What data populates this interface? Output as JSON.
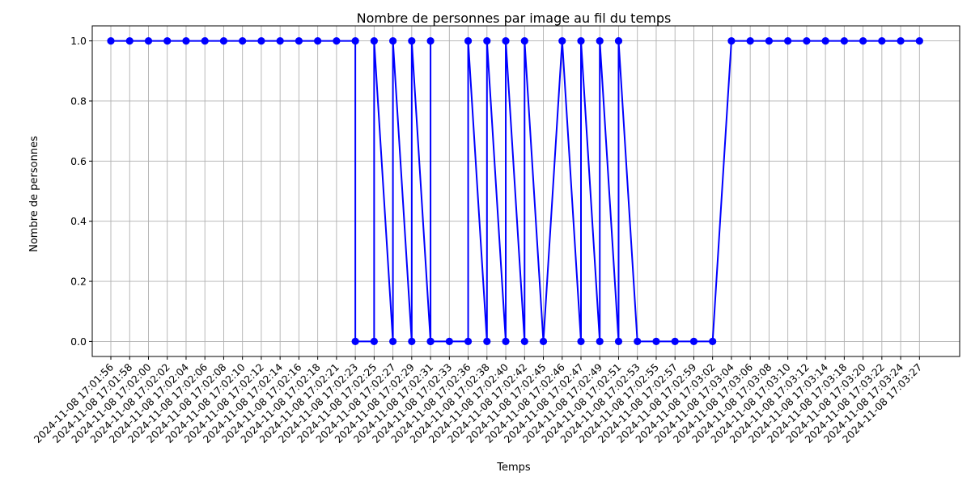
{
  "chart_data": {
    "type": "line",
    "title": "Nombre de personnes par image au fil du temps",
    "xlabel": "Temps",
    "ylabel": "Nombre de personnes",
    "ylim": [
      -0.05,
      1.05
    ],
    "yticks": [
      0.0,
      0.2,
      0.4,
      0.6,
      0.8,
      1.0
    ],
    "ytick_labels": [
      "0.0",
      "0.2",
      "0.4",
      "0.6",
      "0.8",
      "1.0"
    ],
    "grid": true,
    "line_color": "#0000ff",
    "marker": "circle",
    "xtick_labels": [
      "2024-11-08 17:01:56",
      "2024-11-08 17:01:58",
      "2024-11-08 17:02:00",
      "2024-11-08 17:02:02",
      "2024-11-08 17:02:04",
      "2024-11-08 17:02:06",
      "2024-11-08 17:02:08",
      "2024-11-08 17:02:10",
      "2024-11-08 17:02:12",
      "2024-11-08 17:02:14",
      "2024-11-08 17:02:16",
      "2024-11-08 17:02:18",
      "2024-11-08 17:02:21",
      "2024-11-08 17:02:23",
      "2024-11-08 17:02:25",
      "2024-11-08 17:02:27",
      "2024-11-08 17:02:29",
      "2024-11-08 17:02:31",
      "2024-11-08 17:02:33",
      "2024-11-08 17:02:36",
      "2024-11-08 17:02:38",
      "2024-11-08 17:02:40",
      "2024-11-08 17:02:42",
      "2024-11-08 17:02:45",
      "2024-11-08 17:02:46",
      "2024-11-08 17:02:47",
      "2024-11-08 17:02:49",
      "2024-11-08 17:02:51",
      "2024-11-08 17:02:53",
      "2024-11-08 17:02:55",
      "2024-11-08 17:02:57",
      "2024-11-08 17:02:59",
      "2024-11-08 17:03:02",
      "2024-11-08 17:03:04",
      "2024-11-08 17:03:06",
      "2024-11-08 17:03:08",
      "2024-11-08 17:03:10",
      "2024-11-08 17:03:12",
      "2024-11-08 17:03:14",
      "2024-11-08 17:03:18",
      "2024-11-08 17:03:20",
      "2024-11-08 17:03:22",
      "2024-11-08 17:03:24",
      "2024-11-08 17:03:27"
    ],
    "points": [
      {
        "x": "2024-11-08 17:01:56",
        "y": 1
      },
      {
        "x": "2024-11-08 17:01:58",
        "y": 1
      },
      {
        "x": "2024-11-08 17:02:00",
        "y": 1
      },
      {
        "x": "2024-11-08 17:02:02",
        "y": 1
      },
      {
        "x": "2024-11-08 17:02:04",
        "y": 1
      },
      {
        "x": "2024-11-08 17:02:06",
        "y": 1
      },
      {
        "x": "2024-11-08 17:02:08",
        "y": 1
      },
      {
        "x": "2024-11-08 17:02:10",
        "y": 1
      },
      {
        "x": "2024-11-08 17:02:12",
        "y": 1
      },
      {
        "x": "2024-11-08 17:02:14",
        "y": 1
      },
      {
        "x": "2024-11-08 17:02:16",
        "y": 1
      },
      {
        "x": "2024-11-08 17:02:18",
        "y": 1
      },
      {
        "x": "2024-11-08 17:02:21",
        "y": 1
      },
      {
        "x": "2024-11-08 17:02:23",
        "y": 1
      },
      {
        "x": "2024-11-08 17:02:23",
        "y": 0
      },
      {
        "x": "2024-11-08 17:02:25",
        "y": 0
      },
      {
        "x": "2024-11-08 17:02:25",
        "y": 1
      },
      {
        "x": "2024-11-08 17:02:27",
        "y": 0
      },
      {
        "x": "2024-11-08 17:02:27",
        "y": 1
      },
      {
        "x": "2024-11-08 17:02:29",
        "y": 0
      },
      {
        "x": "2024-11-08 17:02:29",
        "y": 1
      },
      {
        "x": "2024-11-08 17:02:31",
        "y": 0
      },
      {
        "x": "2024-11-08 17:02:31",
        "y": 1
      },
      {
        "x": "2024-11-08 17:02:31",
        "y": 0
      },
      {
        "x": "2024-11-08 17:02:33",
        "y": 0
      },
      {
        "x": "2024-11-08 17:02:36",
        "y": 0
      },
      {
        "x": "2024-11-08 17:02:36",
        "y": 1
      },
      {
        "x": "2024-11-08 17:02:38",
        "y": 0
      },
      {
        "x": "2024-11-08 17:02:38",
        "y": 1
      },
      {
        "x": "2024-11-08 17:02:40",
        "y": 0
      },
      {
        "x": "2024-11-08 17:02:40",
        "y": 1
      },
      {
        "x": "2024-11-08 17:02:42",
        "y": 0
      },
      {
        "x": "2024-11-08 17:02:42",
        "y": 1
      },
      {
        "x": "2024-11-08 17:02:45",
        "y": 0
      },
      {
        "x": "2024-11-08 17:02:46",
        "y": 1
      },
      {
        "x": "2024-11-08 17:02:47",
        "y": 0
      },
      {
        "x": "2024-11-08 17:02:47",
        "y": 1
      },
      {
        "x": "2024-11-08 17:02:49",
        "y": 0
      },
      {
        "x": "2024-11-08 17:02:49",
        "y": 1
      },
      {
        "x": "2024-11-08 17:02:51",
        "y": 0
      },
      {
        "x": "2024-11-08 17:02:51",
        "y": 1
      },
      {
        "x": "2024-11-08 17:02:53",
        "y": 0
      },
      {
        "x": "2024-11-08 17:02:55",
        "y": 0
      },
      {
        "x": "2024-11-08 17:02:57",
        "y": 0
      },
      {
        "x": "2024-11-08 17:02:59",
        "y": 0
      },
      {
        "x": "2024-11-08 17:03:02",
        "y": 0
      },
      {
        "x": "2024-11-08 17:03:04",
        "y": 1
      },
      {
        "x": "2024-11-08 17:03:06",
        "y": 1
      },
      {
        "x": "2024-11-08 17:03:08",
        "y": 1
      },
      {
        "x": "2024-11-08 17:03:10",
        "y": 1
      },
      {
        "x": "2024-11-08 17:03:12",
        "y": 1
      },
      {
        "x": "2024-11-08 17:03:14",
        "y": 1
      },
      {
        "x": "2024-11-08 17:03:18",
        "y": 1
      },
      {
        "x": "2024-11-08 17:03:20",
        "y": 1
      },
      {
        "x": "2024-11-08 17:03:22",
        "y": 1
      },
      {
        "x": "2024-11-08 17:03:24",
        "y": 1
      },
      {
        "x": "2024-11-08 17:03:27",
        "y": 1
      }
    ]
  }
}
